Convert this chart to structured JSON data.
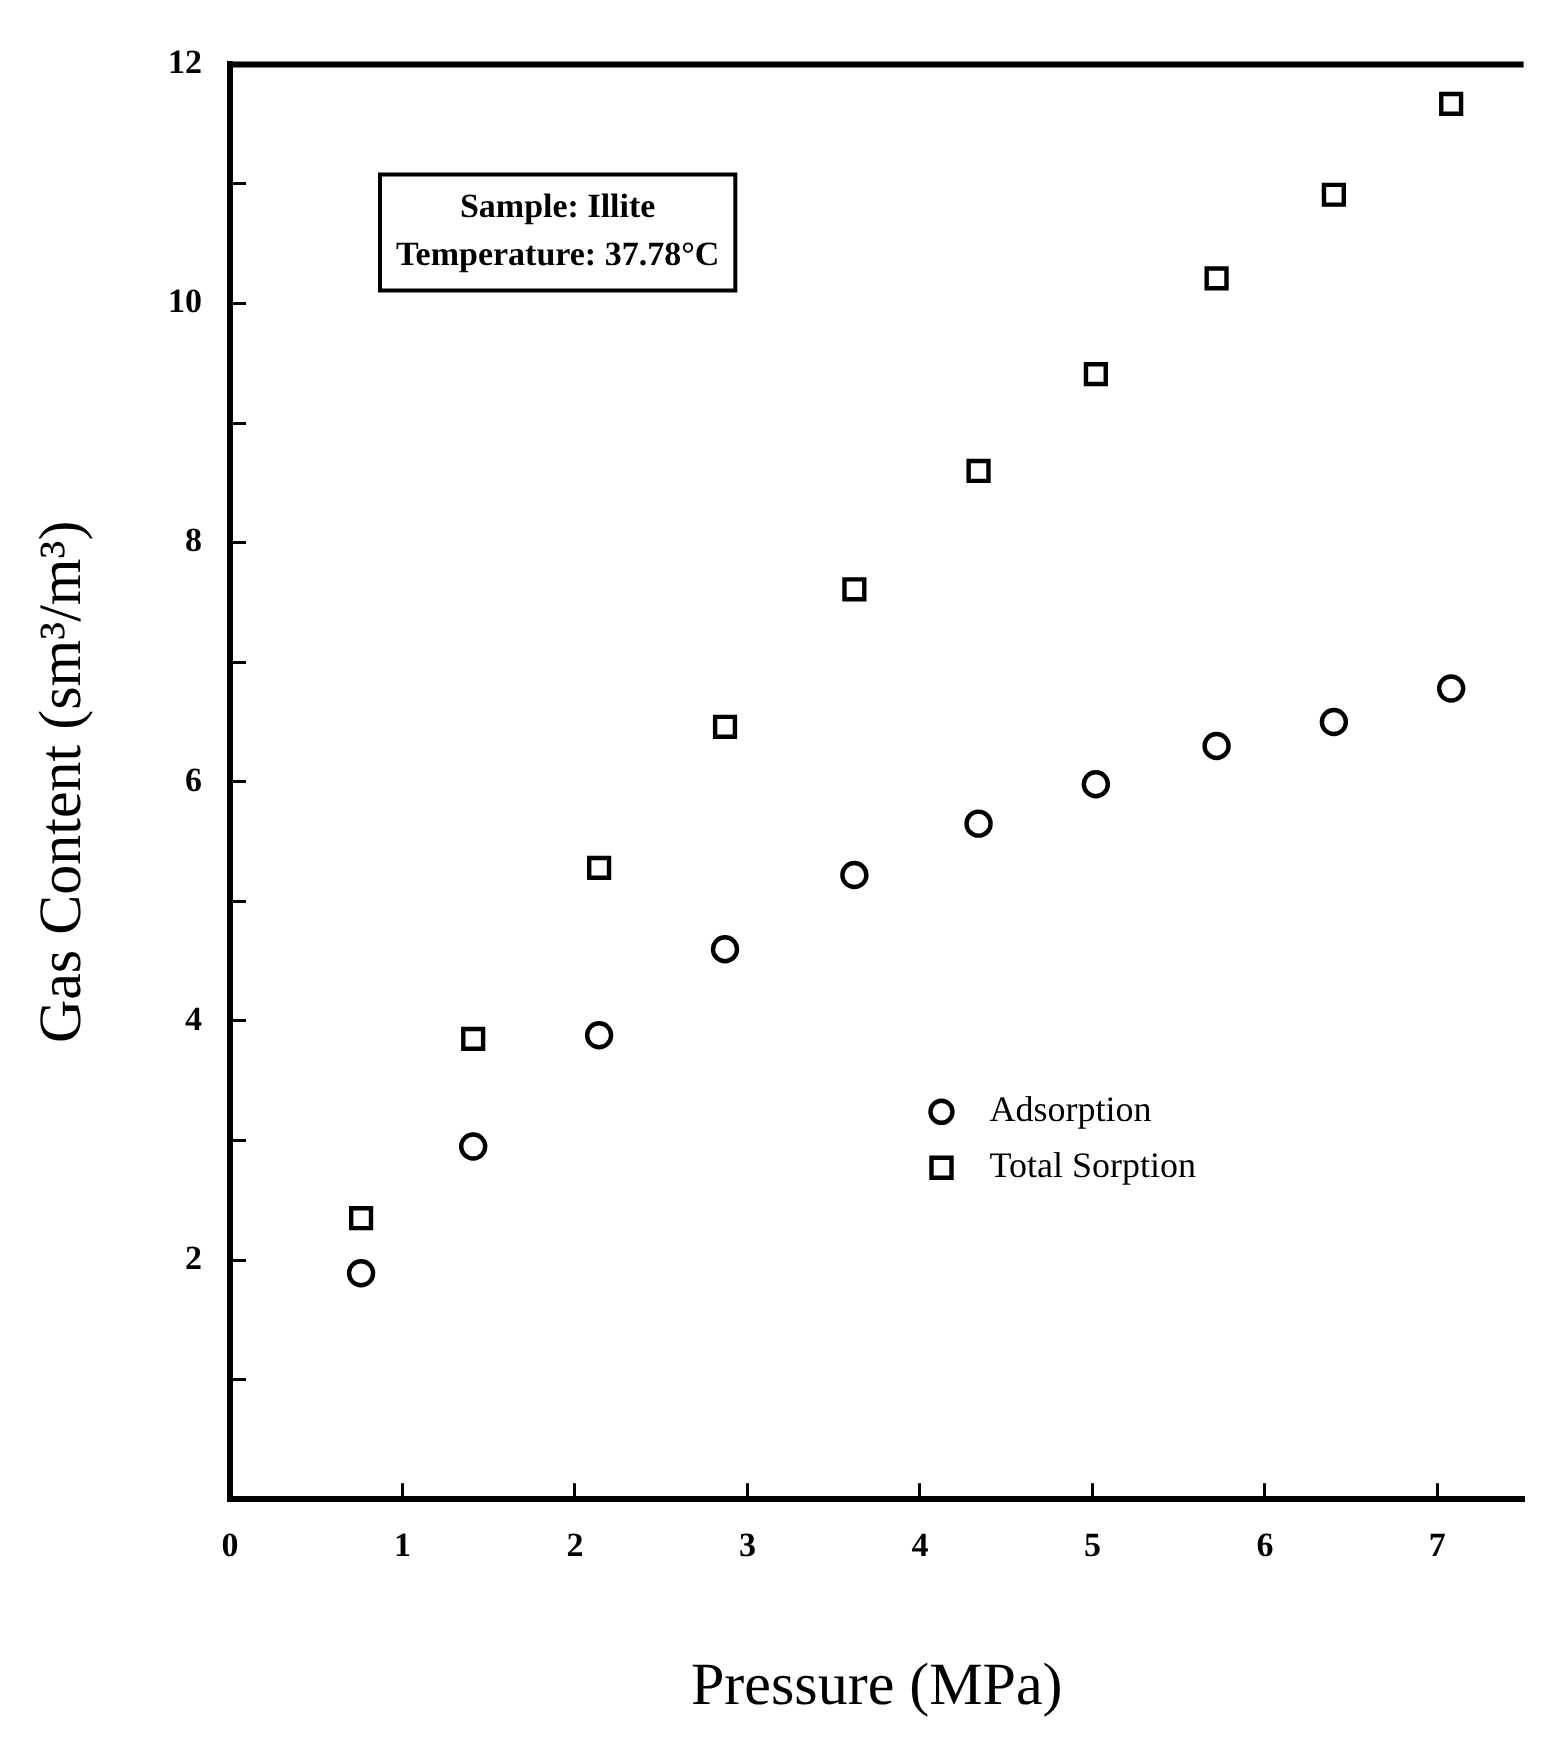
{
  "chart_data": {
    "type": "scatter",
    "xlabel": "Pressure (MPa)",
    "ylabel": "Gas Content (sm³/m³)",
    "annotations": [
      "Sample: Illite",
      "Temperature: 37.78°C"
    ],
    "x": [
      0.76,
      1.41,
      2.14,
      2.87,
      3.62,
      4.34,
      5.02,
      5.72,
      6.4,
      7.08
    ],
    "series": [
      {
        "name": "Adsorption",
        "color": "#000000",
        "marker": "circle",
        "values": [
          1.89,
          2.95,
          3.88,
          4.6,
          5.22,
          5.65,
          5.98,
          6.3,
          6.5,
          6.78
        ]
      },
      {
        "name": "Total Sorption",
        "color": "#000000",
        "marker": "square",
        "values": [
          2.35,
          3.85,
          5.28,
          6.46,
          7.61,
          8.6,
          9.41,
          10.21,
          10.91,
          11.67
        ]
      }
    ],
    "xlim": [
      0,
      7.5
    ],
    "xticks": [
      0,
      1,
      2,
      3,
      4,
      5,
      6,
      7
    ],
    "ylim": [
      0,
      12
    ],
    "yticks": [
      {
        "value": 0,
        "label": null
      },
      {
        "value": 1,
        "label": null
      },
      2,
      {
        "value": 3,
        "label": null
      },
      4,
      {
        "value": 5,
        "label": null
      },
      6,
      {
        "value": 7,
        "label": null
      },
      8,
      {
        "value": 9,
        "label": null
      },
      10,
      {
        "value": 11,
        "label": null
      },
      12
    ],
    "grid": false,
    "legend": "right"
  }
}
